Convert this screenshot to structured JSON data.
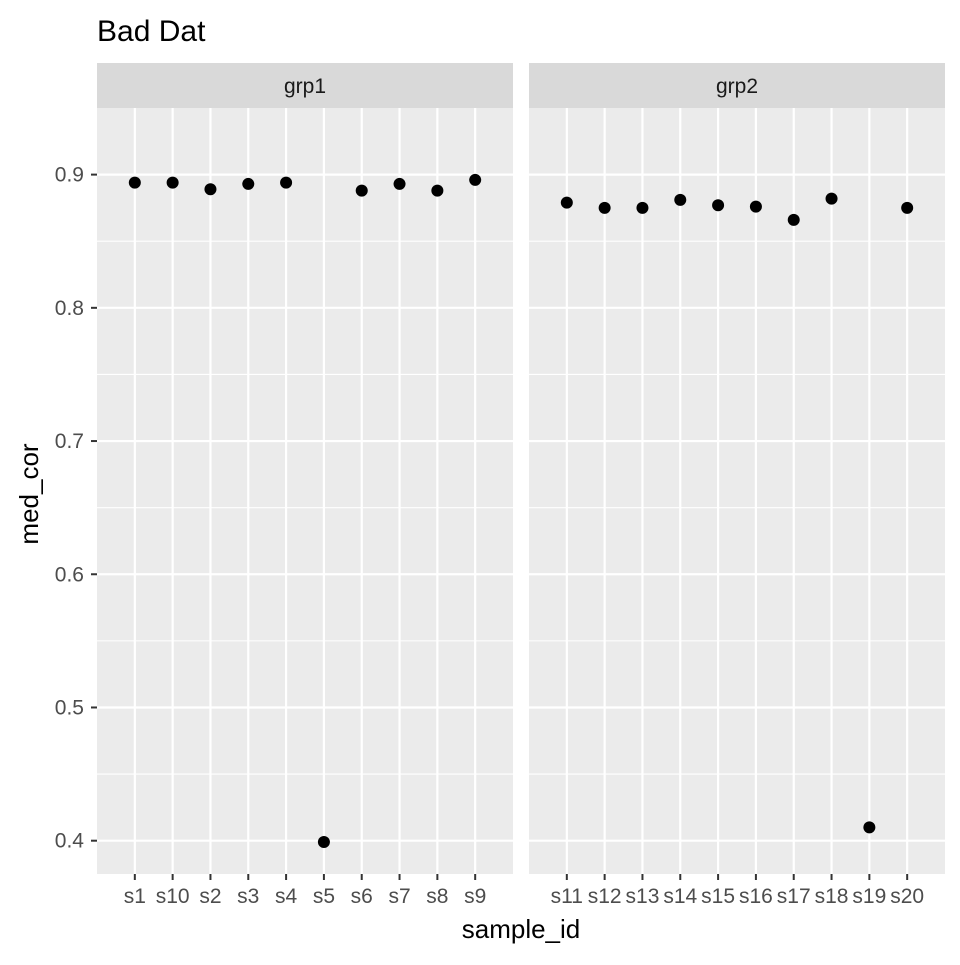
{
  "chart_data": {
    "type": "scatter",
    "title": "Bad Dat",
    "xlabel": "sample_id",
    "ylabel": "med_cor",
    "ylim": [
      0.375,
      0.95
    ],
    "y_ticks": [
      0.4,
      0.5,
      0.6,
      0.7,
      0.8,
      0.9
    ],
    "y_tick_labels": [
      "0.4",
      "0.5",
      "0.6",
      "0.7",
      "0.8",
      "0.9"
    ],
    "grid": true,
    "legend": "none",
    "colors": {
      "panel_background": "#ebebeb",
      "strip_background": "#d9d9d9",
      "grid": "#ffffff",
      "point": "#000000",
      "text": "#000000",
      "tick_text": "#4d4d4d"
    },
    "panels": [
      {
        "facet": "grp1",
        "categories": [
          "s1",
          "s10",
          "s2",
          "s3",
          "s4",
          "s5",
          "s6",
          "s7",
          "s8",
          "s9"
        ],
        "values": [
          0.894,
          0.894,
          0.889,
          0.893,
          0.894,
          0.399,
          0.888,
          0.893,
          0.888,
          0.896
        ]
      },
      {
        "facet": "grp2",
        "categories": [
          "s11",
          "s12",
          "s13",
          "s14",
          "s15",
          "s16",
          "s17",
          "s18",
          "s19",
          "s20"
        ],
        "values": [
          0.879,
          0.875,
          0.875,
          0.881,
          0.877,
          0.876,
          0.866,
          0.882,
          0.41,
          0.875
        ]
      }
    ]
  }
}
